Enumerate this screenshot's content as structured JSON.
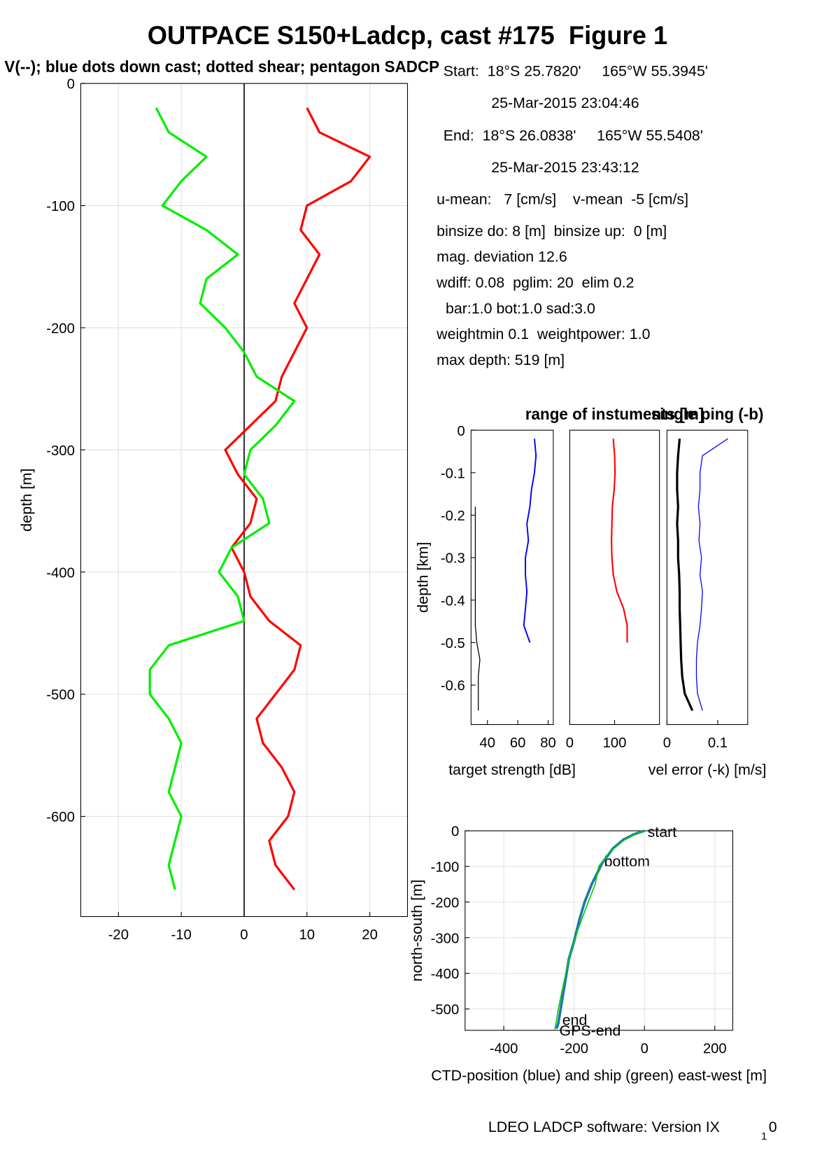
{
  "title": "OUTPACE S150+Ladcp, cast #175  Figure 1",
  "subtitle": "V(--); blue dots down cast; dotted shear; pentagon SADCP",
  "info": [
    "Start:  18°S 25.7820'     165°W 55.3945'",
    "25-Mar-2015 23:04:46",
    "End:  18°S 26.0838'     165°W 55.5408'",
    "25-Mar-2015 23:43:12",
    "u-mean:   7 [cm/s]    v-mean  -5 [cm/s]",
    "binsize do: 8 [m]  binsize up:  0 [m]",
    "mag. deviation 12.6",
    "wdiff: 0.08  pglim: 20  elim 0.2",
    "bar:1.0 bot:1.0 sad:3.0",
    "weightmin 0.1  weightpower: 1.0",
    "max depth: 519 [m]"
  ],
  "footer": [
    "LDEO LADCP software: Version IX",
    "1",
    "0"
  ],
  "chart_data": [
    {
      "type": "profile",
      "ylabel": "depth [m]",
      "xlim": [
        -26,
        26
      ],
      "ylim": [
        -682,
        0
      ],
      "xticks": [
        -20,
        -10,
        0,
        10,
        20
      ],
      "yticks": [
        -600,
        -500,
        -400,
        -300,
        -200,
        -100,
        0
      ],
      "grid": true,
      "y": [
        -20,
        -40,
        -60,
        -80,
        -100,
        -120,
        -140,
        -160,
        -180,
        -200,
        -220,
        -240,
        -260,
        -280,
        -300,
        -320,
        -340,
        -360,
        -380,
        -400,
        -420,
        -440,
        -460,
        -480,
        -500,
        -520,
        -540,
        -560,
        -580,
        -600,
        -620,
        -640,
        -660
      ],
      "series": [
        {
          "color": "#ff0000",
          "values": [
            10,
            12,
            20,
            17,
            10,
            9,
            12,
            10,
            8,
            10,
            8,
            6,
            5,
            1,
            -3,
            -1,
            2,
            1,
            -2,
            0,
            1,
            4,
            9,
            8,
            5,
            2,
            3,
            6,
            8,
            7,
            4,
            5,
            8
          ]
        },
        {
          "color": "#00ee00",
          "values": [
            -14,
            -12,
            -6,
            -10,
            -13,
            -6,
            -1,
            -6,
            -7,
            -3,
            0,
            2,
            8,
            5,
            1,
            0,
            3,
            4,
            -2,
            -4,
            -1,
            0,
            -12,
            -15,
            -15,
            -12,
            -10,
            -11,
            -12,
            -10,
            -11,
            -12,
            -11
          ]
        }
      ]
    },
    {
      "type": "profile",
      "ylabel": "depth [km]",
      "xlabel": "target strength [dB]",
      "xlabel_color": "#0000ff",
      "xlim": [
        29.2,
        83.4
      ],
      "ylim": [
        -0.693,
        0
      ],
      "xticks": [
        40,
        60,
        80
      ],
      "yticks": [
        -0.6,
        -0.5,
        -0.4,
        -0.3,
        -0.2,
        -0.1,
        0
      ],
      "grid": false,
      "y": [
        -0.02,
        -0.06,
        -0.1,
        -0.14,
        -0.18,
        -0.22,
        -0.26,
        -0.3,
        -0.34,
        -0.38,
        -0.42,
        -0.46,
        -0.5,
        -0.54,
        -0.58,
        -0.62,
        -0.66
      ],
      "series": [
        {
          "color": "#0000ff",
          "values": [
            71,
            72,
            71,
            69,
            68,
            66,
            67,
            65,
            65,
            66,
            65,
            64,
            68,
            null,
            null,
            null,
            null
          ]
        },
        {
          "color": "#000000",
          "values": [
            null,
            null,
            null,
            null,
            32,
            32,
            32,
            32,
            32,
            32,
            32,
            32,
            33,
            35,
            34,
            34,
            34
          ]
        }
      ]
    },
    {
      "type": "profile",
      "title": "range of instuments [m]",
      "title_color": "#ff0000",
      "xlim": [
        0,
        200
      ],
      "ylim": [
        -0.693,
        0
      ],
      "xticks": [
        0,
        100
      ],
      "grid": false,
      "y": [
        -0.02,
        -0.06,
        -0.1,
        -0.14,
        -0.18,
        -0.22,
        -0.26,
        -0.3,
        -0.34,
        -0.38,
        -0.42,
        -0.46,
        -0.5,
        -0.54,
        -0.58,
        -0.62,
        -0.66
      ],
      "series": [
        {
          "color": "#ff0000",
          "values": [
            97,
            100,
            101,
            99,
            95,
            94,
            93,
            94,
            97,
            105,
            120,
            128,
            128,
            null,
            null,
            null,
            null
          ]
        }
      ]
    },
    {
      "type": "profile",
      "title": "single ping (-b)",
      "title_color": "#0000ff",
      "xlabel": "vel error (-k) [m/s]",
      "xlim": [
        0,
        0.159
      ],
      "ylim": [
        -0.693,
        0
      ],
      "xticks": [
        0,
        0.1
      ],
      "grid": false,
      "y": [
        -0.02,
        -0.06,
        -0.1,
        -0.14,
        -0.18,
        -0.22,
        -0.26,
        -0.3,
        -0.34,
        -0.38,
        -0.42,
        -0.46,
        -0.5,
        -0.54,
        -0.58,
        -0.62,
        -0.66
      ],
      "series": [
        {
          "color": "#000000",
          "values": [
            0.025,
            0.022,
            0.02,
            0.02,
            0.022,
            0.02,
            0.022,
            0.022,
            0.024,
            0.025,
            0.025,
            0.026,
            0.027,
            0.028,
            0.03,
            0.035,
            0.05
          ]
        },
        {
          "color": "#0000ff",
          "values": [
            0.12,
            0.07,
            0.065,
            0.065,
            0.062,
            0.065,
            0.063,
            0.068,
            0.065,
            0.07,
            0.068,
            0.065,
            0.06,
            0.058,
            0.058,
            0.06,
            0.07
          ]
        }
      ]
    },
    {
      "type": "line",
      "xlabel": "CTD-position (blue) and ship (green) east-west [m]",
      "ylabel": "north-south [m]",
      "xlim": [
        -510,
        251
      ],
      "ylim": [
        -560,
        0
      ],
      "xticks": [
        -400,
        -200,
        0,
        200
      ],
      "yticks": [
        -500,
        -400,
        -300,
        -200,
        -100,
        0
      ],
      "grid": true,
      "annotations": [
        "start",
        "bottom",
        "end",
        "GPS-end"
      ],
      "series": [
        {
          "color": "#1f77b4",
          "x": [
            0,
            -30,
            -60,
            -90,
            -120,
            -150,
            -170,
            -185,
            -200,
            -215,
            -225,
            -235,
            -245,
            -250
          ],
          "values": [
            0,
            -10,
            -25,
            -50,
            -90,
            -150,
            -200,
            -250,
            -310,
            -360,
            -420,
            -480,
            -540,
            -555
          ]
        },
        {
          "color": "#00cc00",
          "x": [
            0,
            -50,
            -100,
            -130,
            -140,
            -160,
            -190,
            -215,
            -230,
            -245,
            -255
          ],
          "values": [
            0,
            -20,
            -60,
            -100,
            -150,
            -200,
            -280,
            -360,
            -430,
            -500,
            -560
          ]
        }
      ]
    }
  ]
}
